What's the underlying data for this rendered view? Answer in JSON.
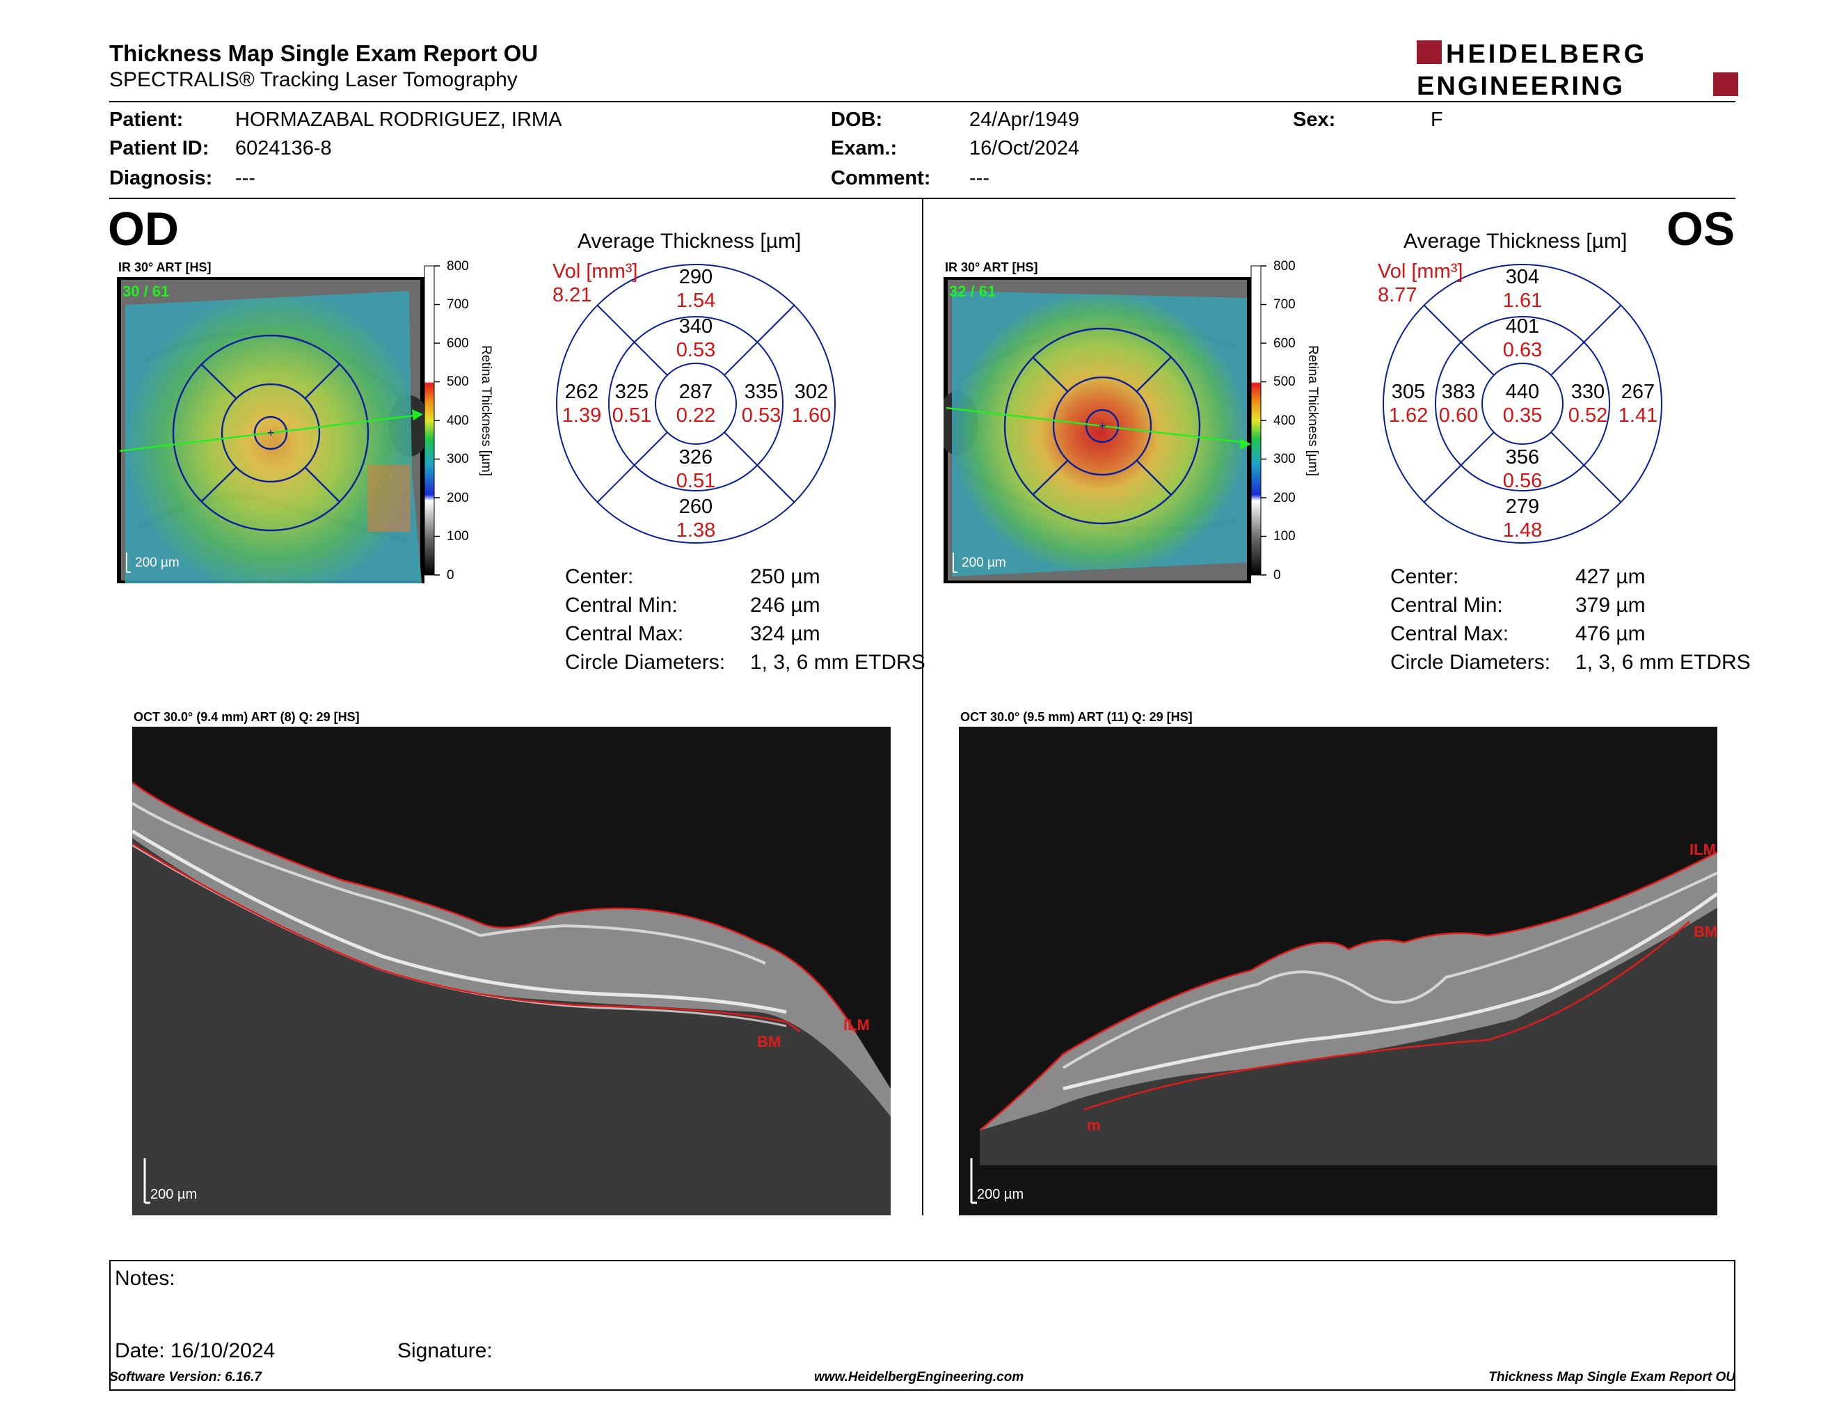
{
  "header": {
    "title": "Thickness Map Single Exam Report OU",
    "subtitle": "SPECTRALIS® Tracking Laser Tomography",
    "logo_line1": "HEIDELBERG",
    "logo_line2": "ENGINEERING",
    "brand_color": "#9b1b2e"
  },
  "patient": {
    "patient_label": "Patient:",
    "patient_value": "HORMAZABAL RODRIGUEZ, IRMA",
    "id_label": "Patient ID:",
    "id_value": "6024136-8",
    "diagnosis_label": "Diagnosis:",
    "diagnosis_value": "---",
    "dob_label": "DOB:",
    "dob_value": "24/Apr/1949",
    "exam_label": "Exam.:",
    "exam_value": "16/Oct/2024",
    "comment_label": "Comment:",
    "comment_value": "---",
    "sex_label": "Sex:",
    "sex_value": "F"
  },
  "scale": {
    "ticks": [
      "800",
      "700",
      "600",
      "500",
      "400",
      "300",
      "200",
      "100",
      "0"
    ],
    "label": "Retina  Thickness [µm]"
  },
  "od": {
    "eye": "OD",
    "ir_caption": "IR 30° ART [HS]",
    "frames": "30 / 61",
    "scalebar": "200 µm",
    "avg_title": "Average Thickness [µm]",
    "vol_label": "Vol [mm³]",
    "vol_total": "8.21",
    "sectors": {
      "outer_sup": [
        "290",
        "1.54"
      ],
      "inner_sup": [
        "340",
        "0.53"
      ],
      "outer_temp": [
        "262",
        "1.39"
      ],
      "inner_temp": [
        "325",
        "0.51"
      ],
      "center": [
        "287",
        "0.22"
      ],
      "inner_nas": [
        "335",
        "0.53"
      ],
      "outer_nas": [
        "302",
        "1.60"
      ],
      "inner_inf": [
        "326",
        "0.51"
      ],
      "outer_inf": [
        "260",
        "1.38"
      ]
    },
    "stats": {
      "center_label": "Center:",
      "center_value": "250 µm",
      "min_label": "Central Min:",
      "min_value": "246 µm",
      "max_label": "Central Max:",
      "max_value": "324 µm",
      "circ_label": "Circle Diameters:",
      "circ_value": "1, 3, 6 mm ETDRS"
    },
    "oct_caption": "OCT 30.0° (9.4 mm) ART (8) Q: 29 [HS]",
    "oct_scalebar": "200 µm",
    "ilm": "ILM",
    "bm": "BM"
  },
  "os": {
    "eye": "OS",
    "ir_caption": "IR 30° ART [HS]",
    "frames": "32 / 61",
    "scalebar": "200 µm",
    "avg_title": "Average Thickness [µm]",
    "vol_label": "Vol [mm³]",
    "vol_total": "8.77",
    "sectors": {
      "outer_sup": [
        "304",
        "1.61"
      ],
      "inner_sup": [
        "401",
        "0.63"
      ],
      "outer_temp": [
        "305",
        "1.62"
      ],
      "inner_temp": [
        "383",
        "0.60"
      ],
      "center": [
        "440",
        "0.35"
      ],
      "inner_nas": [
        "330",
        "0.52"
      ],
      "outer_nas": [
        "267",
        "1.41"
      ],
      "inner_inf": [
        "356",
        "0.56"
      ],
      "outer_inf": [
        "279",
        "1.48"
      ]
    },
    "stats": {
      "center_label": "Center:",
      "center_value": "427 µm",
      "min_label": "Central Min:",
      "min_value": "379 µm",
      "max_label": "Central Max:",
      "max_value": "476 µm",
      "circ_label": "Circle Diameters:",
      "circ_value": "1, 3, 6 mm ETDRS"
    },
    "oct_caption": "OCT 30.0° (9.5 mm) ART (11) Q: 29 [HS]",
    "oct_scalebar": "200 µm",
    "ilm": "ILM",
    "bm": "BM",
    "m_label": "m"
  },
  "notes": {
    "notes_label": "Notes:",
    "date_label": "Date: 16/10/2024",
    "signature_label": "Signature:"
  },
  "footer": {
    "version": "Software Version: 6.16.7",
    "website": "www.HeidelbergEngineering.com",
    "report_name": "Thickness Map Single Exam Report OU"
  }
}
